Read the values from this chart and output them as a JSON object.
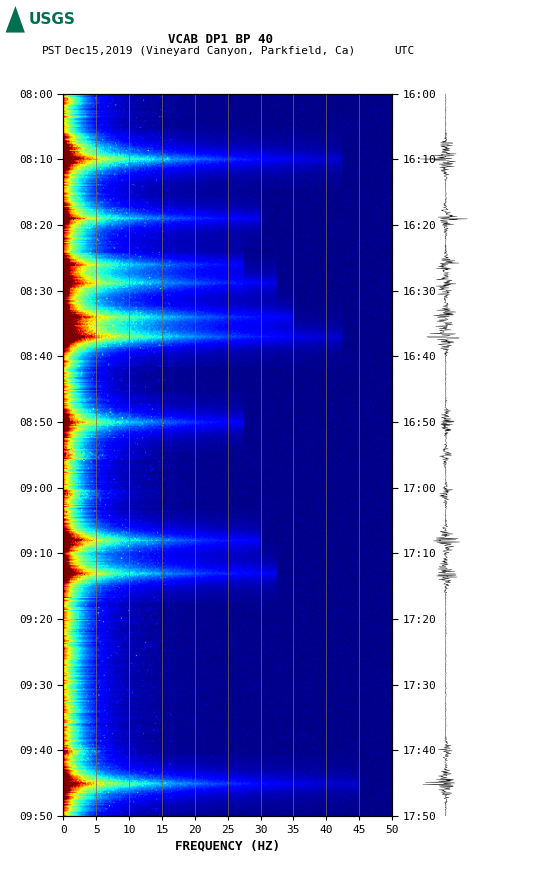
{
  "title_line1": "VCAB DP1 BP 40",
  "title_line2": "PST   Dec15,2019 (Vineyard Canyon, Parkfield, Ca)         UTC",
  "xlabel": "FREQUENCY (HZ)",
  "freq_min": 0,
  "freq_max": 50,
  "ytick_pst": [
    "08:00",
    "08:10",
    "08:20",
    "08:30",
    "08:40",
    "08:50",
    "09:00",
    "09:10",
    "09:20",
    "09:30",
    "09:40",
    "09:50"
  ],
  "ytick_utc": [
    "16:00",
    "16:10",
    "16:20",
    "16:30",
    "16:40",
    "16:50",
    "17:00",
    "17:10",
    "17:20",
    "17:30",
    "17:40",
    "17:50"
  ],
  "xticks": [
    0,
    5,
    10,
    15,
    20,
    25,
    30,
    35,
    40,
    45,
    50
  ],
  "vgrid_freqs": [
    5,
    10,
    15,
    20,
    25,
    30,
    35,
    40,
    45
  ],
  "background_color": "#ffffff",
  "usgs_green": "#006e51",
  "event_times_min": [
    10,
    19,
    26,
    29,
    34,
    37,
    50,
    68,
    73,
    105
  ],
  "event_strengths": [
    1.0,
    0.7,
    0.6,
    0.8,
    0.9,
    1.0,
    0.7,
    0.8,
    0.85,
    1.0
  ],
  "event_freq_extent": [
    0.85,
    0.6,
    0.55,
    0.65,
    0.7,
    0.85,
    0.55,
    0.6,
    0.65,
    0.9
  ],
  "cluster_times": [
    8,
    36,
    55,
    61,
    68,
    100
  ],
  "total_minutes": 110
}
